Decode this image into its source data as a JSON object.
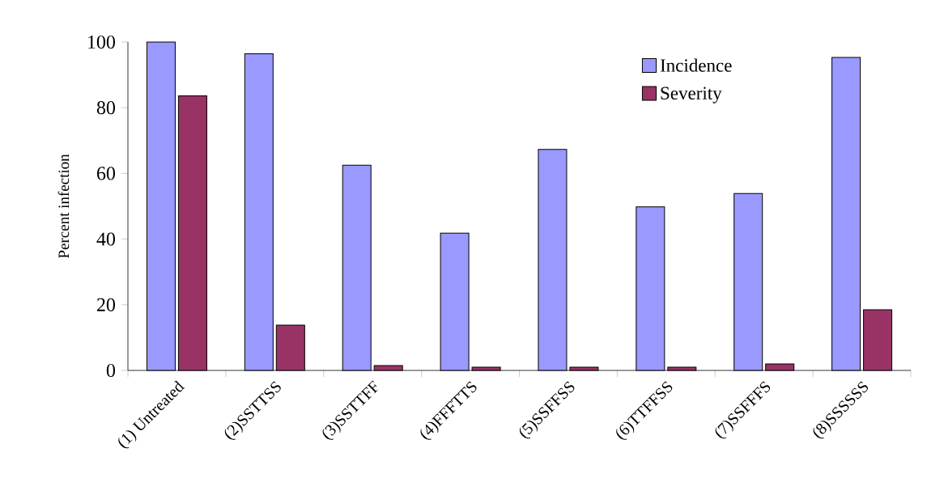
{
  "chart_data": {
    "type": "bar",
    "ylabel": "Percent infection",
    "categories": [
      "(1) Untreated",
      "(2)SSTTSS",
      "(3)SSTTFF",
      "(4)FFFTTS",
      "(5)SSFFSS",
      "(6)TTFFSS",
      "(7)SSFFFS",
      "(8)SSSSSS"
    ],
    "series": [
      {
        "name": "Incidence",
        "color": "#9999ff",
        "values": [
          100,
          96.4,
          62.5,
          41.8,
          67.3,
          49.8,
          53.9,
          95.3
        ]
      },
      {
        "name": "Severity",
        "color": "#993366",
        "values": [
          83.6,
          13.8,
          1.5,
          1.0,
          1.0,
          1.0,
          2.0,
          18.5
        ]
      }
    ],
    "ylim": [
      0,
      100
    ],
    "yticks": [
      0,
      20,
      40,
      60,
      80,
      100
    ],
    "legend": "top right"
  }
}
